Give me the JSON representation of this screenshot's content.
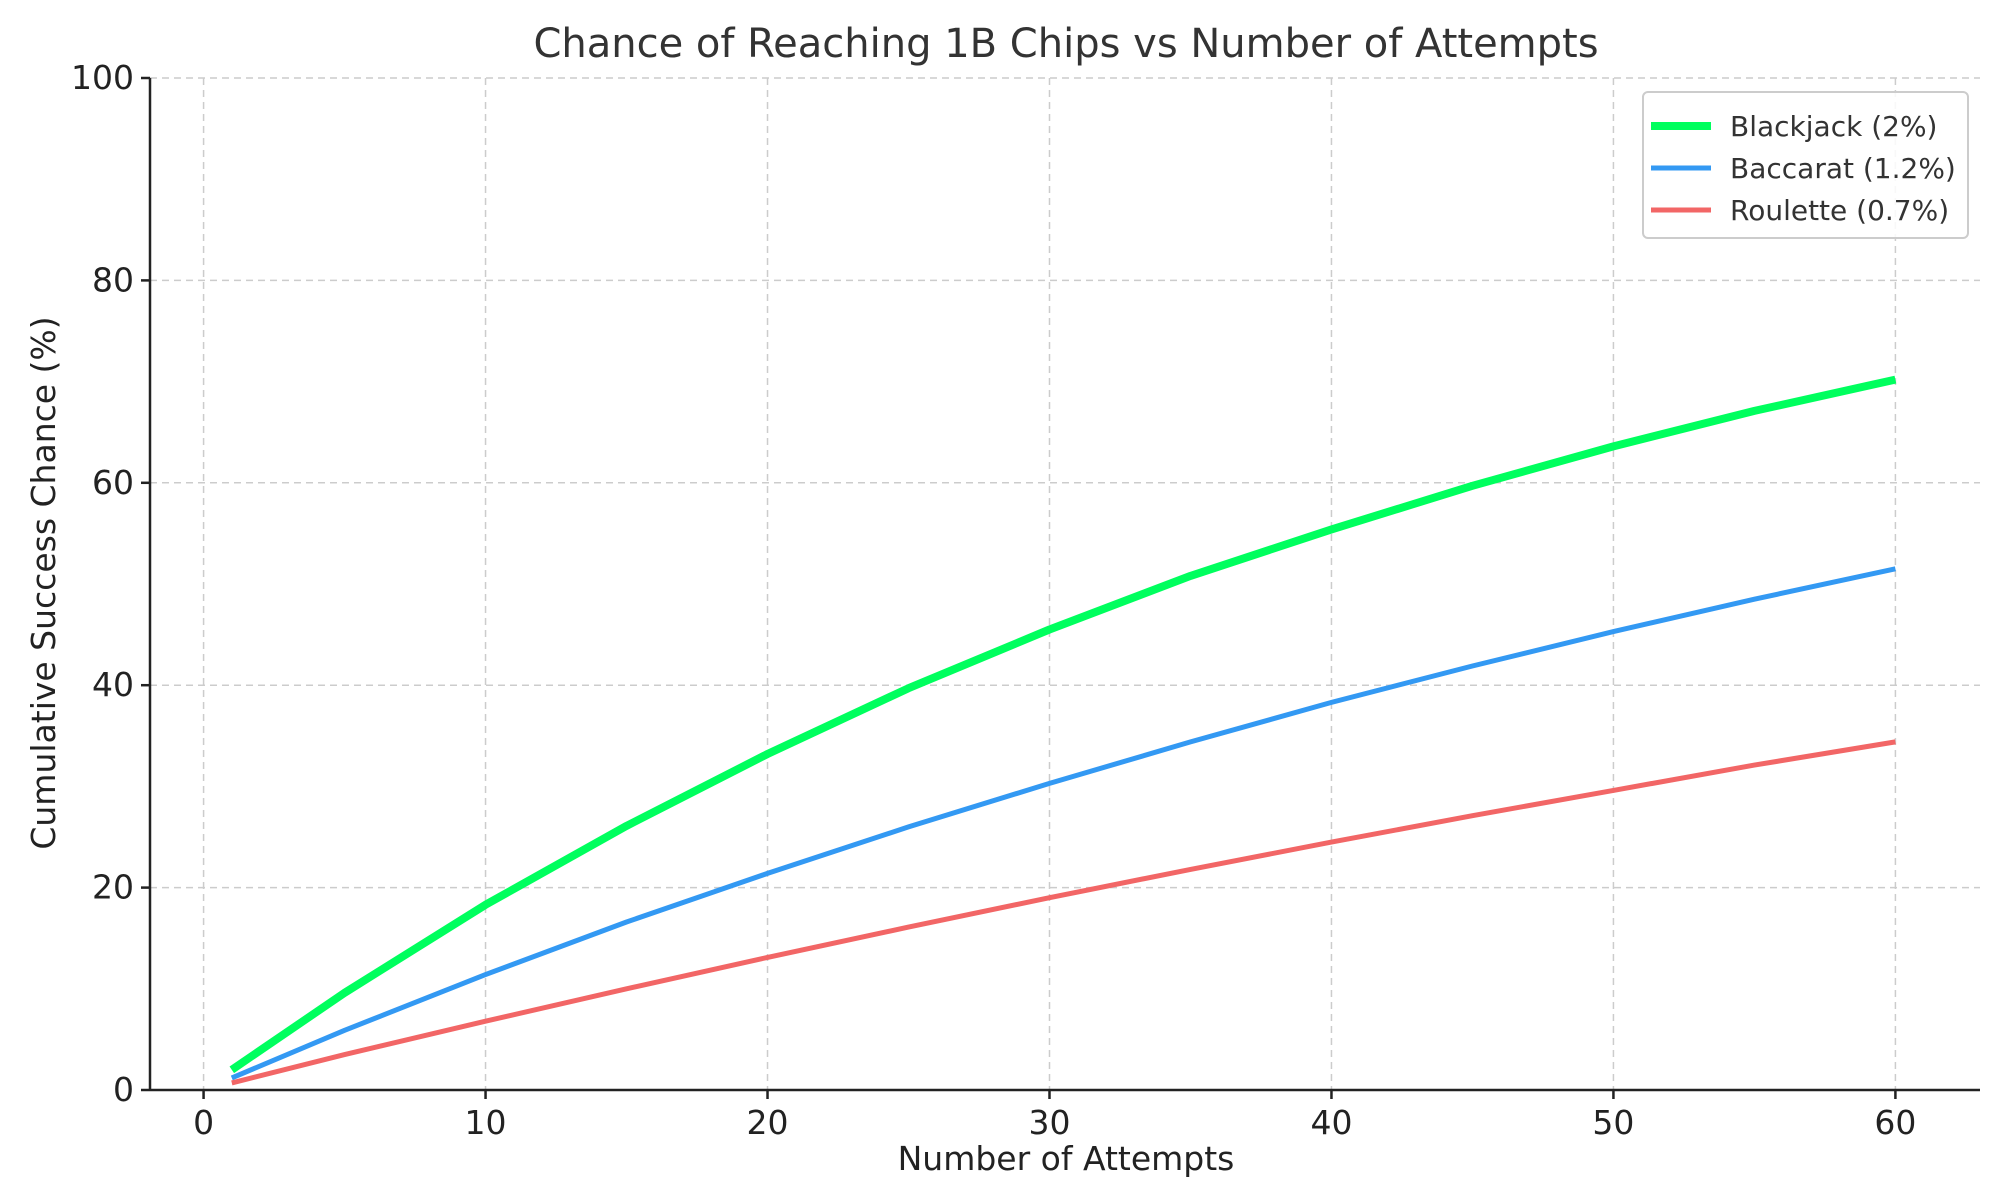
{
  "chart_data": {
    "type": "line",
    "title": "Chance of Reaching 1B Chips vs Number of Attempts",
    "xlabel": "Number of Attempts",
    "ylabel": "Cumulative Success Chance (%)",
    "xlim": [
      -1.9,
      63
    ],
    "ylim": [
      0,
      100
    ],
    "xticks": [
      0,
      10,
      20,
      30,
      40,
      50,
      60
    ],
    "yticks": [
      0,
      20,
      40,
      60,
      80,
      100
    ],
    "grid": true,
    "legend_position": "top-right",
    "x": [
      1,
      5,
      10,
      15,
      20,
      25,
      30,
      35,
      40,
      45,
      50,
      55,
      60
    ],
    "series": [
      {
        "name": "Blackjack (2%)",
        "color": "#00ff5e",
        "line_width": 4,
        "values": [
          2.0,
          9.6,
          18.3,
          26.1,
          33.2,
          39.7,
          45.5,
          50.8,
          55.4,
          59.7,
          63.6,
          67.1,
          70.2
        ]
      },
      {
        "name": "Baccarat (1.2%)",
        "color": "#3399f3",
        "line_width": 2.5,
        "values": [
          1.2,
          5.9,
          11.4,
          16.6,
          21.4,
          26.0,
          30.3,
          34.4,
          38.3,
          41.9,
          45.3,
          48.5,
          51.5
        ]
      },
      {
        "name": "Roulette (0.7%)",
        "color": "#f26666",
        "line_width": 2.5,
        "values": [
          0.7,
          3.5,
          6.8,
          10.0,
          13.1,
          16.1,
          19.0,
          21.8,
          24.5,
          27.1,
          29.6,
          32.1,
          34.4
        ]
      }
    ]
  }
}
